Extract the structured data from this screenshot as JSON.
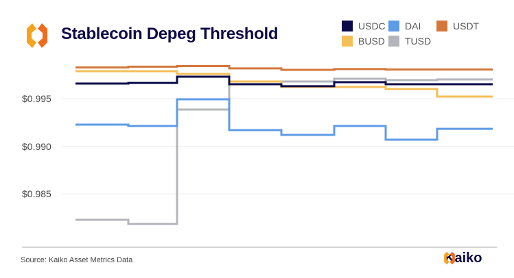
{
  "header": {
    "title": "Stablecoin Depeg Threshold"
  },
  "footer": {
    "source": "Source: Kaiko Asset Metrics Data",
    "brand": "Kaiko"
  },
  "chart_data": {
    "type": "line",
    "step": true,
    "title": "Stablecoin Depeg Threshold",
    "xlabel": "",
    "ylabel": "",
    "ylim": [
      0.98,
      0.999
    ],
    "yticks": [
      0.985,
      0.99,
      0.995
    ],
    "ytick_labels": [
      "$0.985",
      "$0.990",
      "$0.995"
    ],
    "grid": true,
    "legend": "top-right",
    "series": [
      {
        "name": "USDC",
        "color": "#0a0a4a",
        "values": [
          0.99658,
          0.99665,
          0.9973,
          0.99651,
          0.9963,
          0.99673,
          0.99651,
          0.99651
        ]
      },
      {
        "name": "DAI",
        "color": "#5e9be6",
        "values": [
          0.99227,
          0.99212,
          0.99493,
          0.99169,
          0.99119,
          0.99212,
          0.99068,
          0.99183
        ]
      },
      {
        "name": "USDT",
        "color": "#d4773a",
        "values": [
          0.99827,
          0.99835,
          0.99842,
          0.99817,
          0.99802,
          0.9981,
          0.99806,
          0.99806
        ]
      },
      {
        "name": "BUSD",
        "color": "#f4bf57",
        "values": [
          0.99788,
          0.99788,
          0.99759,
          0.9968,
          0.99622,
          0.99622,
          0.99601,
          0.99522
        ]
      },
      {
        "name": "TUSD",
        "color": "#b3b5ba",
        "values": [
          0.98227,
          0.98183,
          0.99385,
          0.9968,
          0.9968,
          0.99709,
          0.99694,
          0.99701
        ]
      }
    ]
  }
}
